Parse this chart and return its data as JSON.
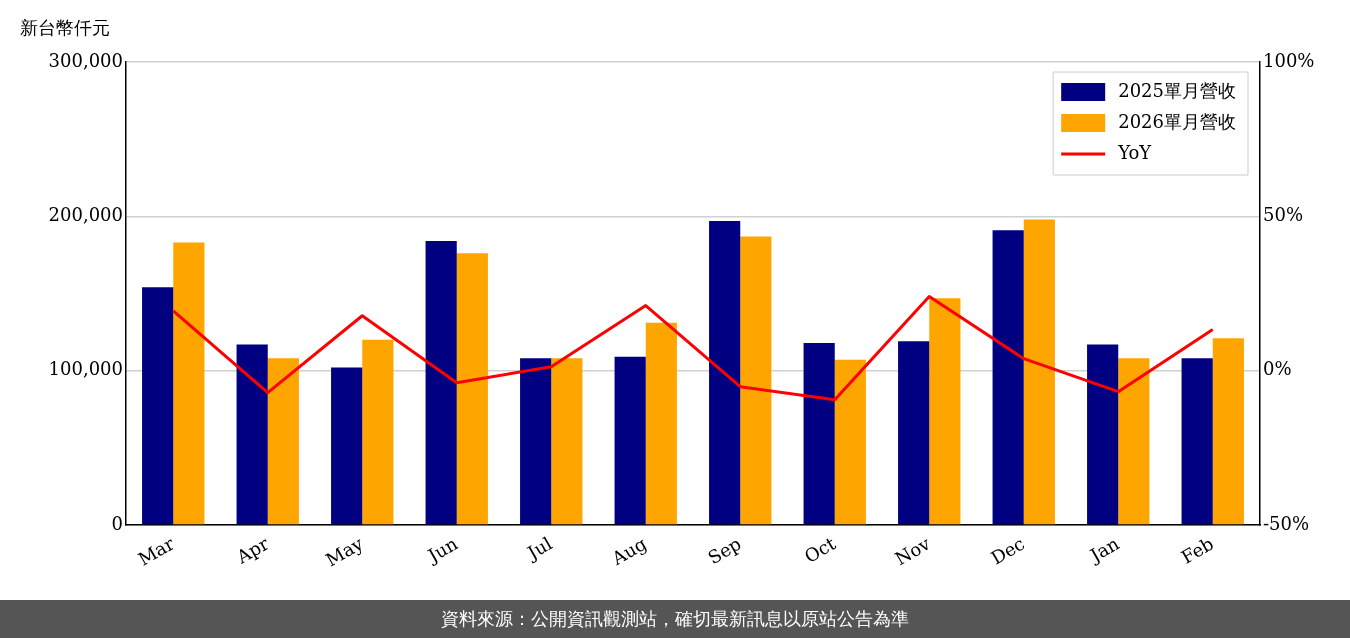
{
  "chart_data": {
    "type": "bar",
    "ylabel": "新台幣仟元",
    "categories": [
      "Mar",
      "Apr",
      "May",
      "Jun",
      "Jul",
      "Aug",
      "Sep",
      "Oct",
      "Nov",
      "Dec",
      "Jan",
      "Feb"
    ],
    "series": [
      {
        "name": "2025單月營收",
        "color": "#000080",
        "values": [
          154000,
          117000,
          102000,
          184000,
          108000,
          109000,
          197000,
          118000,
          119000,
          191000,
          117000,
          108000
        ]
      },
      {
        "name": "2026單月營收",
        "color": "#ffa500",
        "values": [
          183000,
          108000,
          120000,
          176000,
          108000,
          131000,
          187000,
          107000,
          147000,
          198000,
          108000,
          121000
        ]
      },
      {
        "name": "YoY",
        "type": "line",
        "axis": "y2",
        "color": "#ff0000",
        "values": [
          19.4,
          -7.1,
          17.8,
          -3.9,
          1.3,
          21.1,
          -5.2,
          -9.4,
          24.0,
          3.9,
          -6.8,
          13.3
        ]
      }
    ],
    "ylim": [
      0,
      300000
    ],
    "yticks": [
      {
        "value": 0,
        "label": "0"
      },
      {
        "value": 100000,
        "label": "100,000"
      },
      {
        "value": 200000,
        "label": "200,000"
      },
      {
        "value": 300000,
        "label": "300,000"
      }
    ],
    "y2lim": [
      -50,
      100
    ],
    "y2ticks": [
      {
        "value": -50,
        "label": "-50%"
      },
      {
        "value": 0,
        "label": "0%"
      },
      {
        "value": 50,
        "label": "50%"
      },
      {
        "value": 100,
        "label": "100%"
      }
    ],
    "grid": "y",
    "legend": "top right",
    "marker": "none",
    "line_style": "solid",
    "annotations": [
      "資料來源：公開資訊觀測站，確切最新訊息以原站公告為準"
    ]
  }
}
